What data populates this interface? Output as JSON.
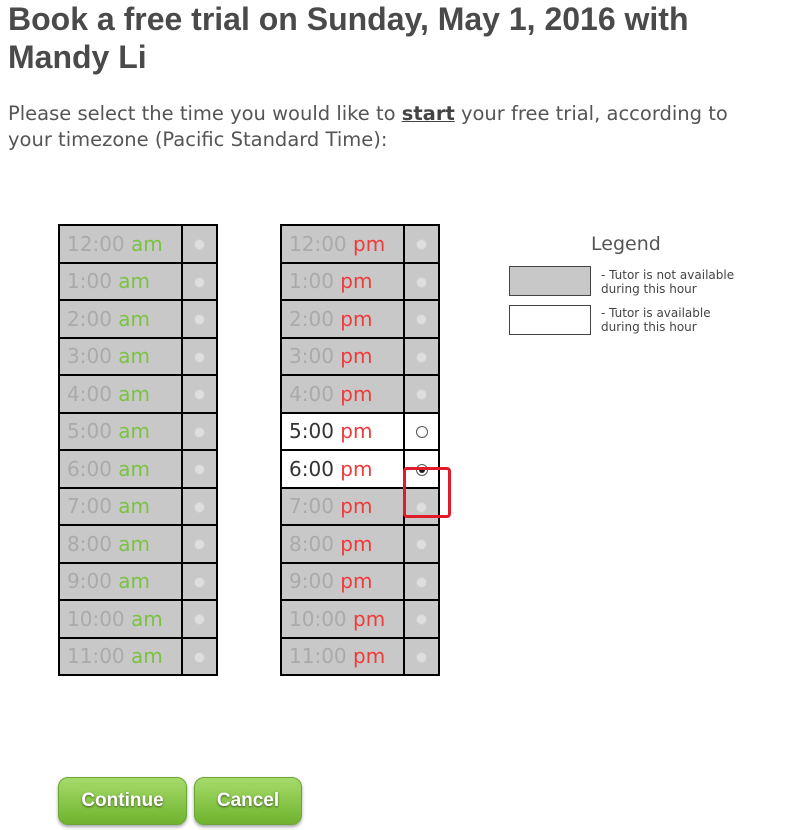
{
  "header": {
    "title": "Book a free trial on Sunday, May 1, 2016 with Mandy Li"
  },
  "instructions": {
    "before": "Please select the time you would like to ",
    "emphasis": "start",
    "after1": " your free trial, according to",
    "after2": "your timezone (Pacific Standard Time):"
  },
  "am_slots": [
    {
      "time": "12:00",
      "meridiem": "am",
      "available": false,
      "selected": false
    },
    {
      "time": "1:00",
      "meridiem": "am",
      "available": false,
      "selected": false
    },
    {
      "time": "2:00",
      "meridiem": "am",
      "available": false,
      "selected": false
    },
    {
      "time": "3:00",
      "meridiem": "am",
      "available": false,
      "selected": false
    },
    {
      "time": "4:00",
      "meridiem": "am",
      "available": false,
      "selected": false
    },
    {
      "time": "5:00",
      "meridiem": "am",
      "available": false,
      "selected": false
    },
    {
      "time": "6:00",
      "meridiem": "am",
      "available": false,
      "selected": false
    },
    {
      "time": "7:00",
      "meridiem": "am",
      "available": false,
      "selected": false
    },
    {
      "time": "8:00",
      "meridiem": "am",
      "available": false,
      "selected": false
    },
    {
      "time": "9:00",
      "meridiem": "am",
      "available": false,
      "selected": false
    },
    {
      "time": "10:00",
      "meridiem": "am",
      "available": false,
      "selected": false
    },
    {
      "time": "11:00",
      "meridiem": "am",
      "available": false,
      "selected": false
    }
  ],
  "pm_slots": [
    {
      "time": "12:00",
      "meridiem": "pm",
      "available": false,
      "selected": false
    },
    {
      "time": "1:00",
      "meridiem": "pm",
      "available": false,
      "selected": false
    },
    {
      "time": "2:00",
      "meridiem": "pm",
      "available": false,
      "selected": false
    },
    {
      "time": "3:00",
      "meridiem": "pm",
      "available": false,
      "selected": false
    },
    {
      "time": "4:00",
      "meridiem": "pm",
      "available": false,
      "selected": false
    },
    {
      "time": "5:00",
      "meridiem": "pm",
      "available": true,
      "selected": false
    },
    {
      "time": "6:00",
      "meridiem": "pm",
      "available": true,
      "selected": true
    },
    {
      "time": "7:00",
      "meridiem": "pm",
      "available": false,
      "selected": false
    },
    {
      "time": "8:00",
      "meridiem": "pm",
      "available": false,
      "selected": false
    },
    {
      "time": "9:00",
      "meridiem": "pm",
      "available": false,
      "selected": false
    },
    {
      "time": "10:00",
      "meridiem": "pm",
      "available": false,
      "selected": false
    },
    {
      "time": "11:00",
      "meridiem": "pm",
      "available": false,
      "selected": false
    }
  ],
  "legend": {
    "title": "Legend",
    "not_available_line1": "- Tutor is not available",
    "not_available_line2": "during this hour",
    "available_line1": "- Tutor is available",
    "available_line2": "during this hour",
    "not_available_color": "#c8c8c8",
    "available_color": "#ffffff"
  },
  "buttons": {
    "continue": "Continue",
    "cancel": "Cancel"
  },
  "colors": {
    "am": "#7cc242",
    "pm": "#ee3b3b",
    "button": "#7fc241",
    "highlight": "#e01b2b"
  }
}
